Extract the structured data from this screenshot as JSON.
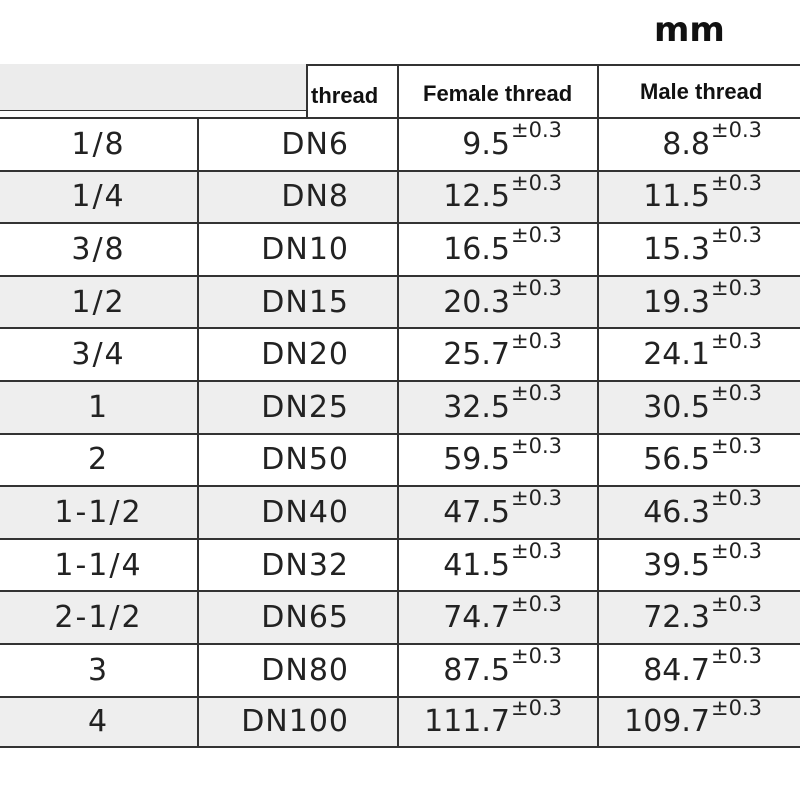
{
  "unit": "mm",
  "headers": {
    "thread": "thread",
    "female": "Female thread",
    "male": "Male thread"
  },
  "tolerance": "±0.3",
  "rows": [
    {
      "size": "1/8",
      "dn": "DN6",
      "female": "9.5",
      "male": "8.8"
    },
    {
      "size": "1/4",
      "dn": "DN8",
      "female": "12.5",
      "male": "11.5"
    },
    {
      "size": "3/8",
      "dn": "DN10",
      "female": "16.5",
      "male": "15.3"
    },
    {
      "size": "1/2",
      "dn": "DN15",
      "female": "20.3",
      "male": "19.3"
    },
    {
      "size": "3/4",
      "dn": "DN20",
      "female": "25.7",
      "male": "24.1"
    },
    {
      "size": "1",
      "dn": "DN25",
      "female": "32.5",
      "male": "30.5"
    },
    {
      "size": "2",
      "dn": "DN50",
      "female": "59.5",
      "male": "56.5"
    },
    {
      "size": "1-1/2",
      "dn": "DN40",
      "female": "47.5",
      "male": "46.3"
    },
    {
      "size": "1-1/4",
      "dn": "DN32",
      "female": "41.5",
      "male": "39.5"
    },
    {
      "size": "2-1/2",
      "dn": "DN65",
      "female": "74.7",
      "male": "72.3"
    },
    {
      "size": "3",
      "dn": "DN80",
      "female": "87.5",
      "male": "84.7"
    },
    {
      "size": "4",
      "dn": "DN100",
      "female": "111.7",
      "male": "109.7"
    }
  ]
}
